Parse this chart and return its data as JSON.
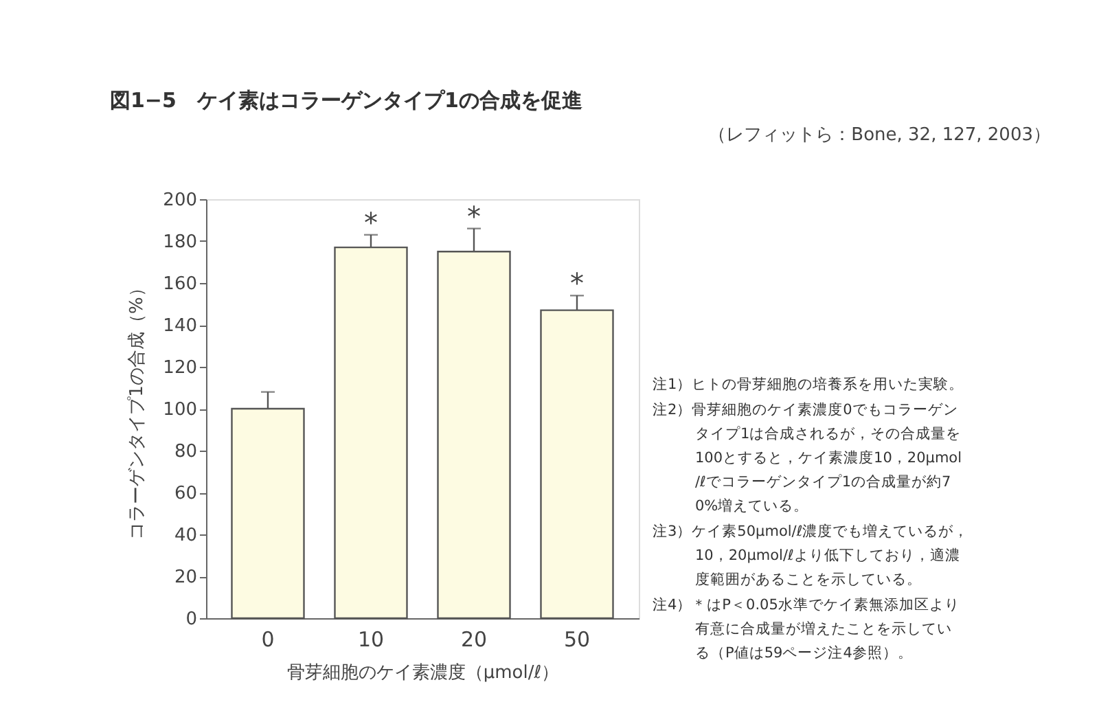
{
  "chart_data": {
    "type": "bar",
    "title": "図1−5　ケイ素はコラーゲンタイプ1の合成を促進",
    "subtitle": "（レフィットら：Bone, 32, 127, 2003）",
    "xlabel": "骨芽細胞のケイ素濃度（μmol/ℓ）",
    "ylabel": "コラーゲンタイプ1の合成（%）",
    "categories": [
      "0",
      "10",
      "20",
      "50"
    ],
    "values": [
      100,
      177,
      175,
      147
    ],
    "errors": [
      8,
      6,
      11,
      7
    ],
    "color": "#fdfbe2",
    "ylim": [
      0,
      200
    ],
    "yticks": [
      0,
      20,
      40,
      60,
      80,
      100,
      120,
      140,
      160,
      180,
      200
    ],
    "grid": false,
    "annotations": [
      {
        "text": "*",
        "x": "10",
        "y": 177
      },
      {
        "text": "*",
        "x": "20",
        "y": 175
      },
      {
        "text": "*",
        "x": "50",
        "y": 147
      },
      "注1）ヒトの骨芽細胞の培養系を用いた実験。",
      "注2）骨芽細胞のケイ素濃度0でもコラーゲンタイプ1は合成されるが，その合成量を100とすると，ケイ素濃度10，20μmol/ℓでコラーゲンタイプ1の合成量が約70%増えている。",
      "注3）ケイ素50μmol/ℓ濃度でも増えているが，10，20μmol/ℓより低下しており，適濃度範囲があることを示している。",
      "注4）＊はP＜0.05水準でケイ素無添加区より有意に合成量が増えたことを示している（P値は59ページ注4参照）。"
    ]
  }
}
